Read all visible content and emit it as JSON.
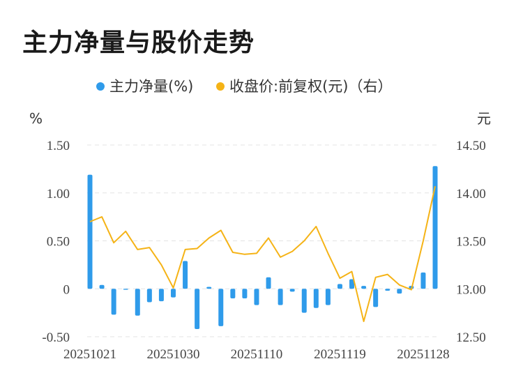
{
  "title": "主力净量与股价走势",
  "colors": {
    "bar": "#2f9bea",
    "line": "#f5b316",
    "grid": "#e3e3e3",
    "text": "#444444"
  },
  "chart_data": {
    "type": "bar+line",
    "legend": [
      {
        "name": "主力净量(%)",
        "color": "#2f9bea"
      },
      {
        "name": "收盘价:前复权(元)（右）",
        "color": "#f5b316"
      }
    ],
    "left_unit": "%",
    "right_unit": "元",
    "left_axis": {
      "min": -0.5,
      "max": 1.5,
      "ticks": [
        "1.50",
        "1.00",
        "0.50",
        "0",
        "-0.50"
      ]
    },
    "right_axis": {
      "min": 12.5,
      "max": 14.5,
      "ticks": [
        "14.50",
        "14.00",
        "13.50",
        "13.00",
        "12.50"
      ]
    },
    "x_tick_labels": [
      "20251021",
      "20251030",
      "20251110",
      "20251119",
      "20251128"
    ],
    "x_tick_indices": [
      0,
      7,
      14,
      21,
      28
    ],
    "series": [
      {
        "name": "主力净量(%)",
        "kind": "bar",
        "values": [
          1.19,
          0.04,
          -0.27,
          -0.01,
          -0.28,
          -0.14,
          -0.13,
          -0.09,
          0.29,
          -0.42,
          0.02,
          -0.39,
          -0.1,
          -0.1,
          -0.17,
          0.12,
          -0.17,
          -0.03,
          -0.25,
          -0.2,
          -0.17,
          0.05,
          0.1,
          0.03,
          -0.19,
          -0.02,
          -0.05,
          0.03,
          0.17,
          1.28
        ]
      },
      {
        "name": "收盘价:前复权(元)（右）",
        "kind": "line",
        "values": [
          13.7,
          13.75,
          13.48,
          13.6,
          13.41,
          13.43,
          13.25,
          13.01,
          13.41,
          13.42,
          13.53,
          13.61,
          13.38,
          13.36,
          13.37,
          13.53,
          13.33,
          13.39,
          13.5,
          13.65,
          13.37,
          13.11,
          13.18,
          12.66,
          13.12,
          13.15,
          13.04,
          12.99,
          13.5,
          14.07
        ]
      }
    ]
  }
}
